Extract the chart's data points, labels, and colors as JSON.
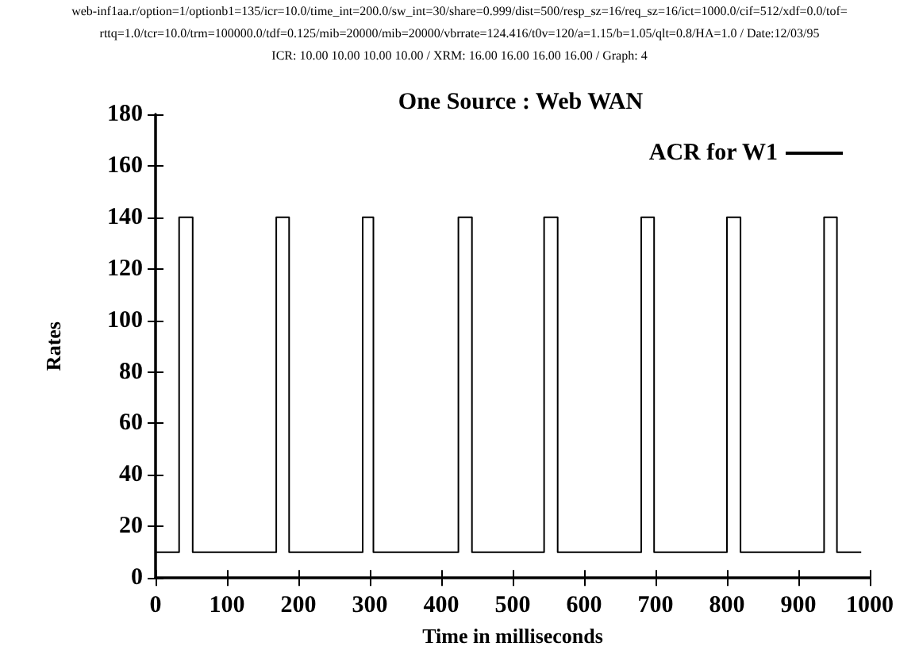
{
  "chart_data": {
    "type": "line",
    "title": "One Source : Web WAN",
    "annotations": [
      "web-inf1aa.r/option=1/optionb1=135/icr=10.0/time_int=200.0/sw_int=30/share=0.999/dist=500/resp_sz=16/req_sz=16/ict=1000.0/cif=512/xdf=0.0/tof=",
      "rttq=1.0/tcr=10.0/trm=100000.0/tdf=0.125/mib=20000/mib=20000/vbrrate=124.416/t0v=120/a=1.15/b=1.05/qlt=0.8/HA=1.0 / Date:12/03/95",
      "ICR: 10.00 10.00 10.00 10.00 / XRM: 16.00 16.00 16.00 16.00 / Graph: 4"
    ],
    "xlabel": "Time in milliseconds",
    "ylabel": "Rates",
    "series": [
      {
        "name": "ACR for W1",
        "color": "#000000",
        "x": [
          0,
          33,
          33,
          52,
          52,
          169,
          169,
          187,
          187,
          290,
          290,
          305,
          305,
          424,
          424,
          443,
          443,
          544,
          544,
          563,
          563,
          680,
          680,
          698,
          698,
          800,
          800,
          819,
          819,
          936,
          936,
          954,
          954,
          988
        ],
        "values": [
          10,
          10,
          140,
          140,
          10,
          10,
          140,
          140,
          10,
          10,
          140,
          140,
          10,
          10,
          140,
          140,
          10,
          10,
          140,
          140,
          10,
          10,
          140,
          140,
          10,
          10,
          140,
          140,
          10,
          10,
          140,
          140,
          10,
          10
        ]
      }
    ],
    "xlim": [
      0,
      1000
    ],
    "xticks": [
      0,
      100,
      200,
      300,
      400,
      500,
      600,
      700,
      800,
      900,
      1000
    ],
    "ylim": [
      0,
      180
    ],
    "yticks": [
      0,
      20,
      40,
      60,
      80,
      100,
      120,
      140,
      160,
      180
    ],
    "grid": false,
    "legend": "top right",
    "marker": "none",
    "line_style": "solid"
  }
}
